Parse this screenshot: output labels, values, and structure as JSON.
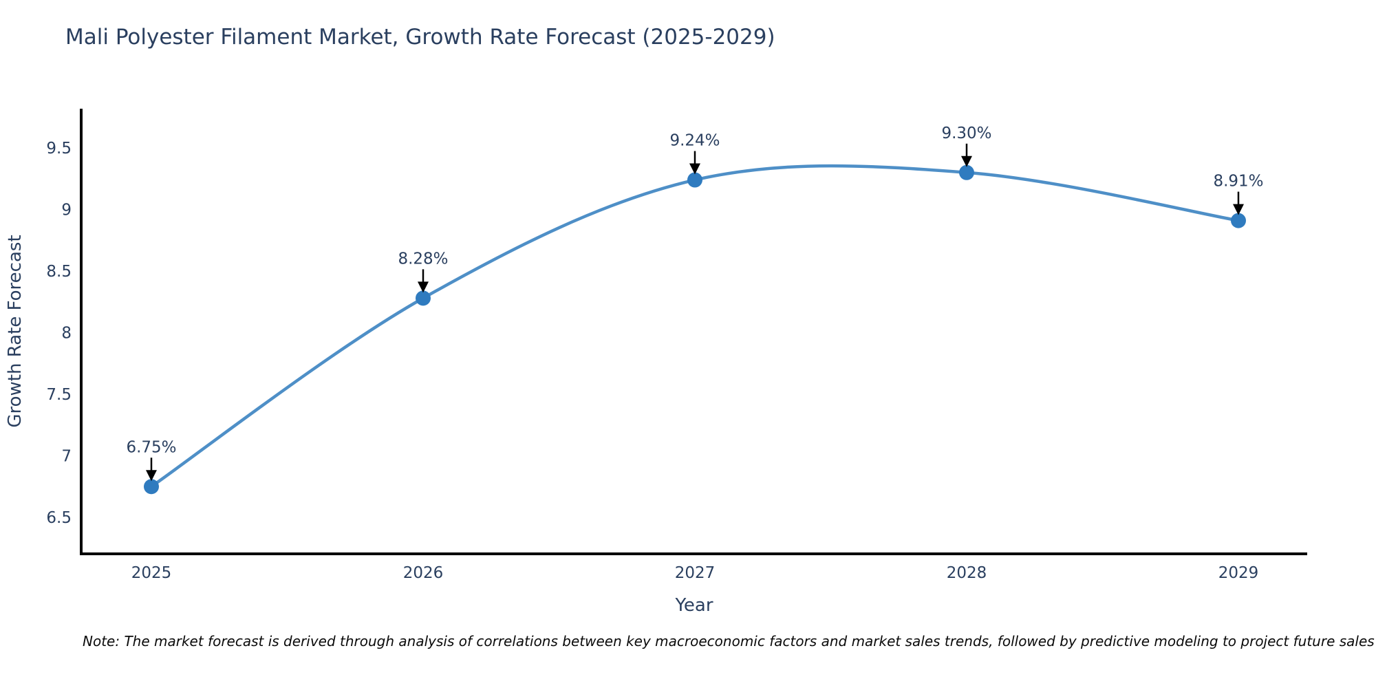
{
  "title": "Mali Polyester Filament Market, Growth Rate Forecast (2025-2029)",
  "note": "Note: The market forecast is derived through analysis of correlations between key macroeconomic factors and market sales trends, followed by predictive modeling to project future sales",
  "colors": {
    "text": "#2a3f5f",
    "line": "#4e8fc7",
    "marker": "#2f7bbf",
    "axis": "#000000",
    "arrow": "#000000",
    "background": "#ffffff"
  },
  "chart_data": {
    "type": "line",
    "title": "Mali Polyester Filament Market, Growth Rate Forecast (2025-2029)",
    "x": [
      "2025",
      "2026",
      "2027",
      "2028",
      "2029"
    ],
    "series": [
      {
        "name": "Growth Rate Forecast",
        "values": [
          6.75,
          8.28,
          9.24,
          9.3,
          8.91
        ],
        "point_labels": [
          "6.75%",
          "8.28%",
          "9.24%",
          "9.30%",
          "8.91%"
        ]
      }
    ],
    "xlabel": "Year",
    "ylabel": "Growth Rate Forecast",
    "yticks": [
      "6.5",
      "7",
      "7.5",
      "8",
      "8.5",
      "9",
      "9.5"
    ],
    "ytick_values": [
      6.5,
      7,
      7.5,
      8,
      8.5,
      9,
      9.5
    ],
    "ylim": [
      6.2,
      9.84
    ],
    "grid": false,
    "legend_position": "none",
    "line_shape": "spline",
    "annotation_arrows": true
  }
}
